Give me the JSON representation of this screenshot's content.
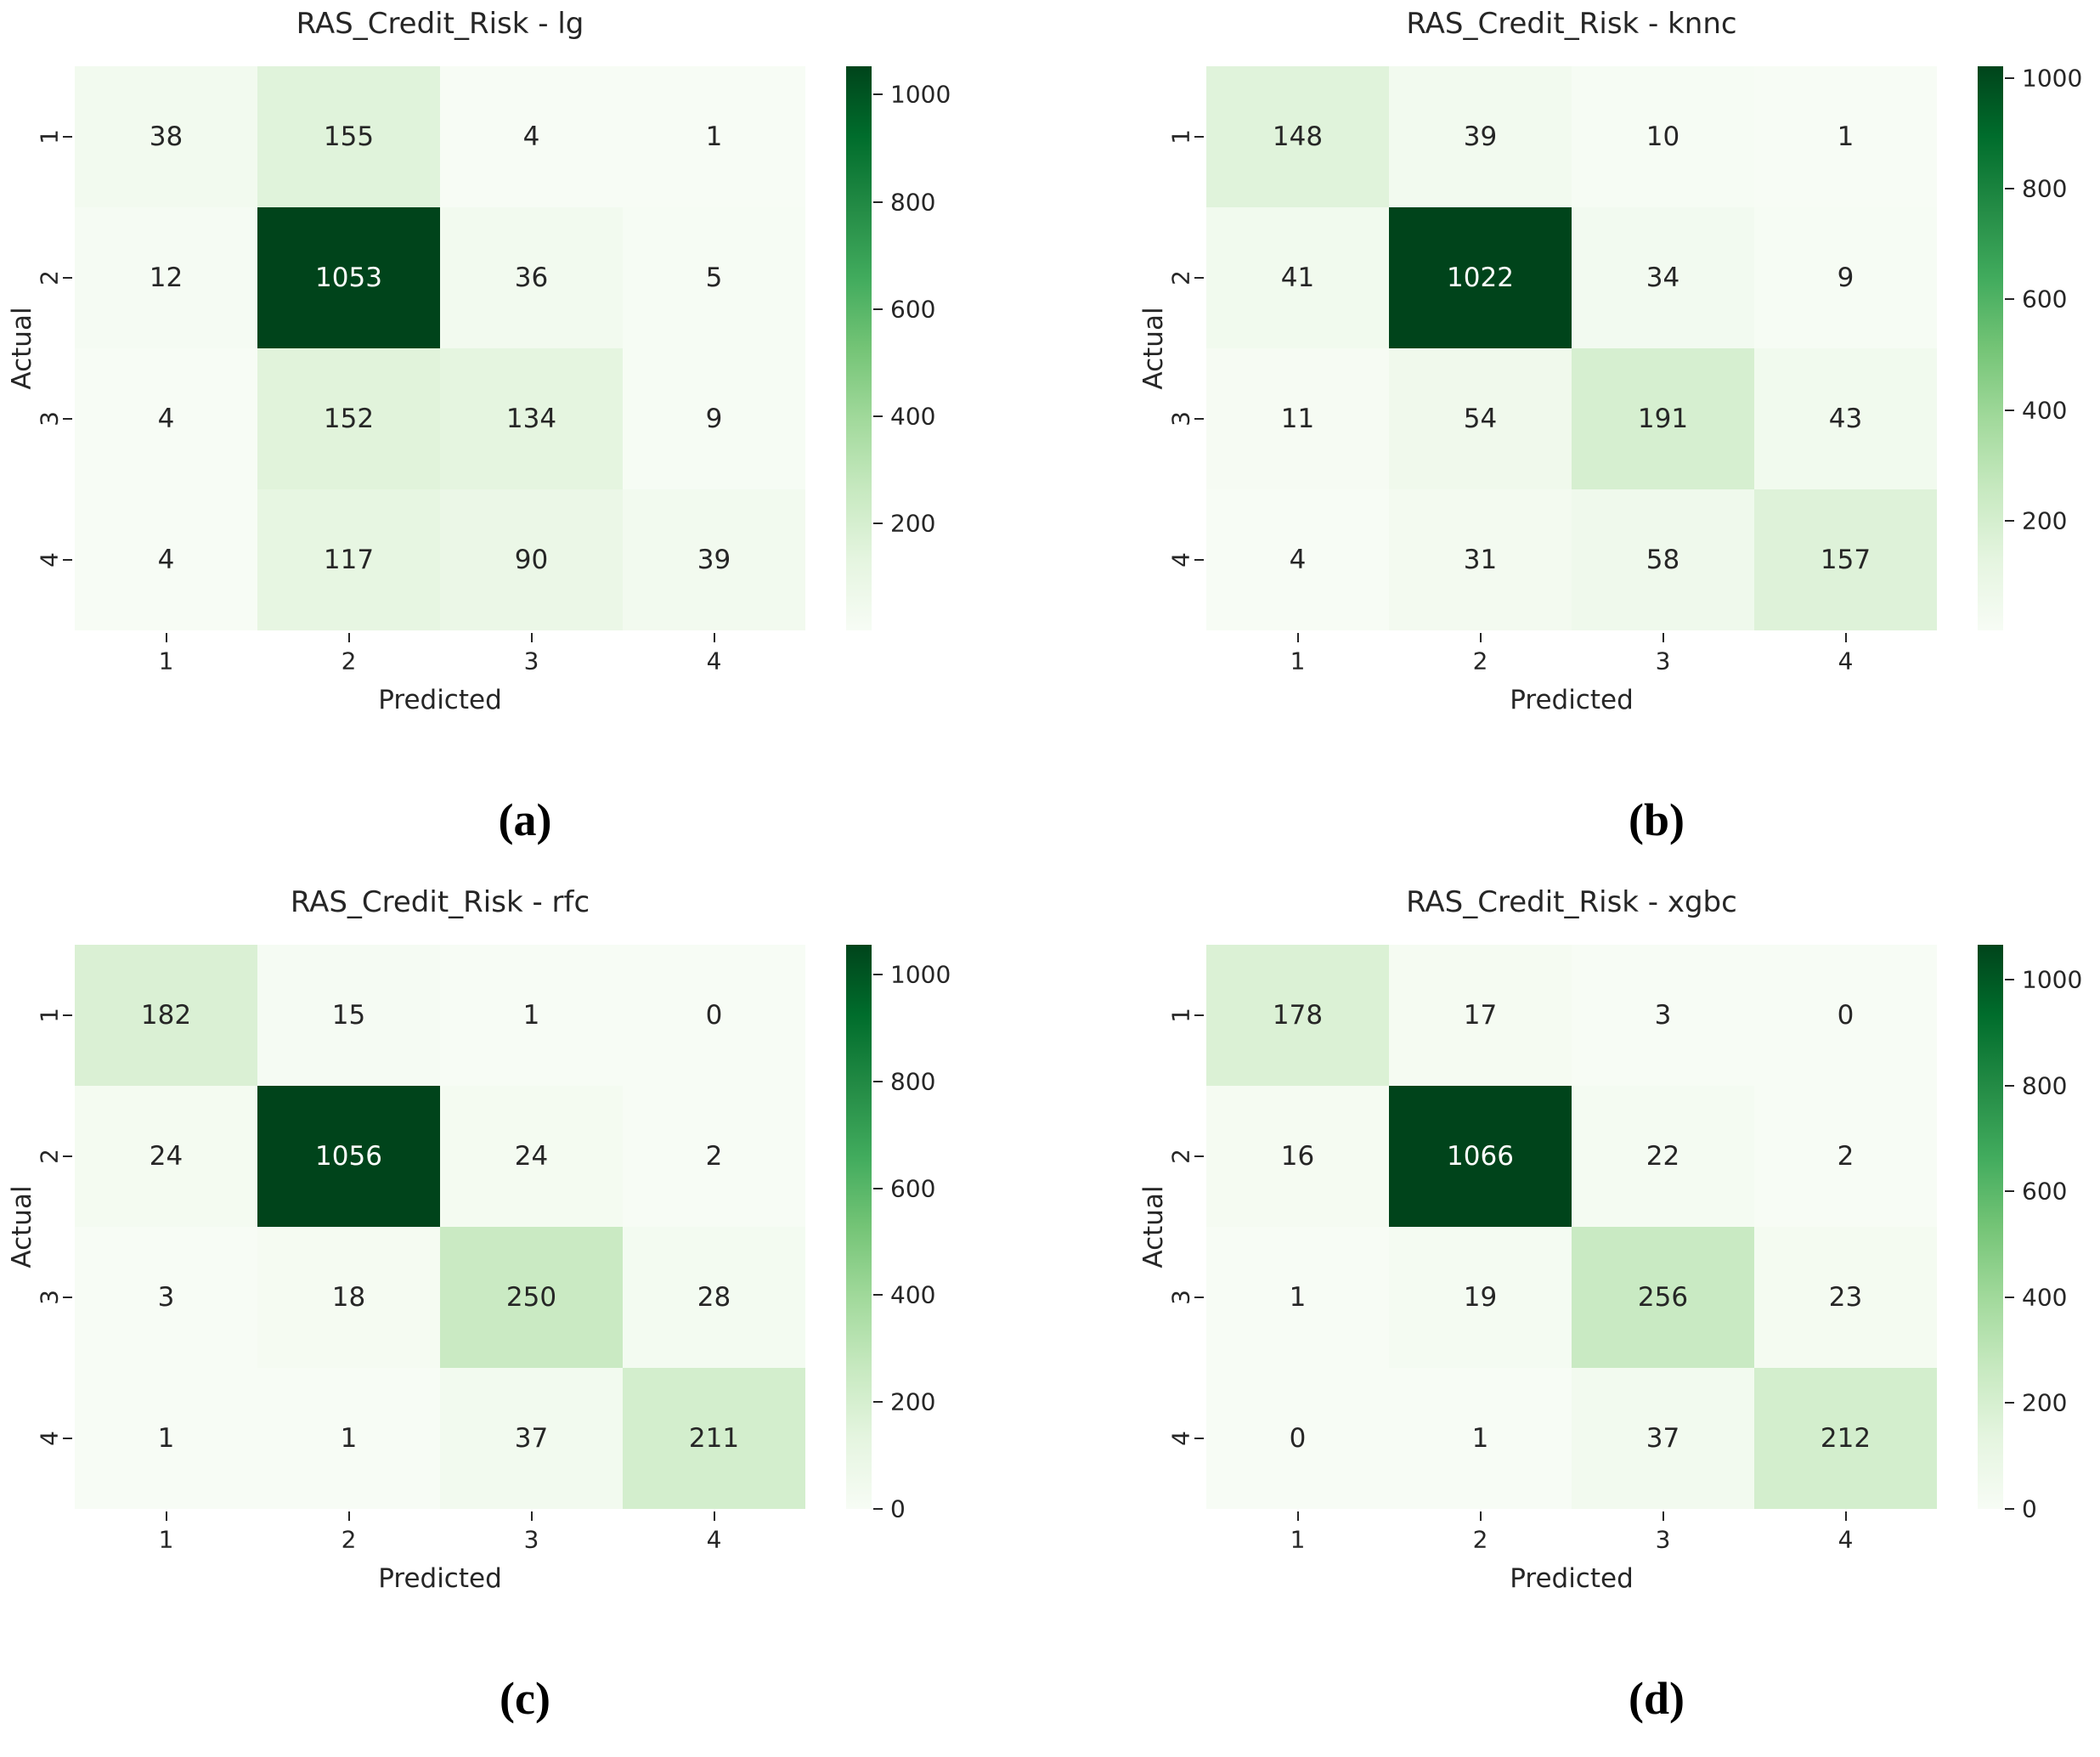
{
  "figure": {
    "background": "#ffffff",
    "colormap": "Greens",
    "colormap_anchors": [
      "#f7fcf5",
      "#e5f5e0",
      "#c7e9c0",
      "#a1d99b",
      "#74c476",
      "#41ab5d",
      "#238b45",
      "#006d2c",
      "#00441b"
    ],
    "annotation_dark_color": "#262626",
    "annotation_light_color": "#ffffff"
  },
  "chart_data": [
    {
      "type": "heatmap",
      "panel": "a",
      "caption": "(a)",
      "title": "RAS_Credit_Risk - lg",
      "xlabel": "Predicted",
      "ylabel": "Actual",
      "x_tick_labels": [
        "1",
        "2",
        "3",
        "4"
      ],
      "y_tick_labels": [
        "1",
        "2",
        "3",
        "4"
      ],
      "matrix": [
        [
          38,
          155,
          4,
          1
        ],
        [
          12,
          1053,
          36,
          5
        ],
        [
          4,
          152,
          134,
          9
        ],
        [
          4,
          117,
          90,
          39
        ]
      ],
      "vmin": 1,
      "vmax": 1053,
      "colorbar_ticks": [
        200,
        400,
        600,
        800,
        1000
      ],
      "colormap": "Greens",
      "legend_position": "right"
    },
    {
      "type": "heatmap",
      "panel": "b",
      "caption": "(b)",
      "title": "RAS_Credit_Risk - knnc",
      "xlabel": "Predicted",
      "ylabel": "Actual",
      "x_tick_labels": [
        "1",
        "2",
        "3",
        "4"
      ],
      "y_tick_labels": [
        "1",
        "2",
        "3",
        "4"
      ],
      "matrix": [
        [
          148,
          39,
          10,
          1
        ],
        [
          41,
          1022,
          34,
          9
        ],
        [
          11,
          54,
          191,
          43
        ],
        [
          4,
          31,
          58,
          157
        ]
      ],
      "vmin": 1,
      "vmax": 1022,
      "colorbar_ticks": [
        200,
        400,
        600,
        800,
        1000
      ],
      "colormap": "Greens",
      "legend_position": "right"
    },
    {
      "type": "heatmap",
      "panel": "c",
      "caption": "(c)",
      "title": "RAS_Credit_Risk - rfc",
      "xlabel": "Predicted",
      "ylabel": "Actual",
      "x_tick_labels": [
        "1",
        "2",
        "3",
        "4"
      ],
      "y_tick_labels": [
        "1",
        "2",
        "3",
        "4"
      ],
      "matrix": [
        [
          182,
          15,
          1,
          0
        ],
        [
          24,
          1056,
          24,
          2
        ],
        [
          3,
          18,
          250,
          28
        ],
        [
          1,
          1,
          37,
          211
        ]
      ],
      "vmin": 0,
      "vmax": 1056,
      "colorbar_ticks": [
        0,
        200,
        400,
        600,
        800,
        1000
      ],
      "colormap": "Greens",
      "legend_position": "right"
    },
    {
      "type": "heatmap",
      "panel": "d",
      "caption": "(d)",
      "title": "RAS_Credit_Risk - xgbc",
      "xlabel": "Predicted",
      "ylabel": "Actual",
      "x_tick_labels": [
        "1",
        "2",
        "3",
        "4"
      ],
      "y_tick_labels": [
        "1",
        "2",
        "3",
        "4"
      ],
      "matrix": [
        [
          178,
          17,
          3,
          0
        ],
        [
          16,
          1066,
          22,
          2
        ],
        [
          1,
          19,
          256,
          23
        ],
        [
          0,
          1,
          37,
          212
        ]
      ],
      "vmin": 0,
      "vmax": 1066,
      "colorbar_ticks": [
        0,
        200,
        400,
        600,
        800,
        1000
      ],
      "colormap": "Greens",
      "legend_position": "right"
    }
  ]
}
